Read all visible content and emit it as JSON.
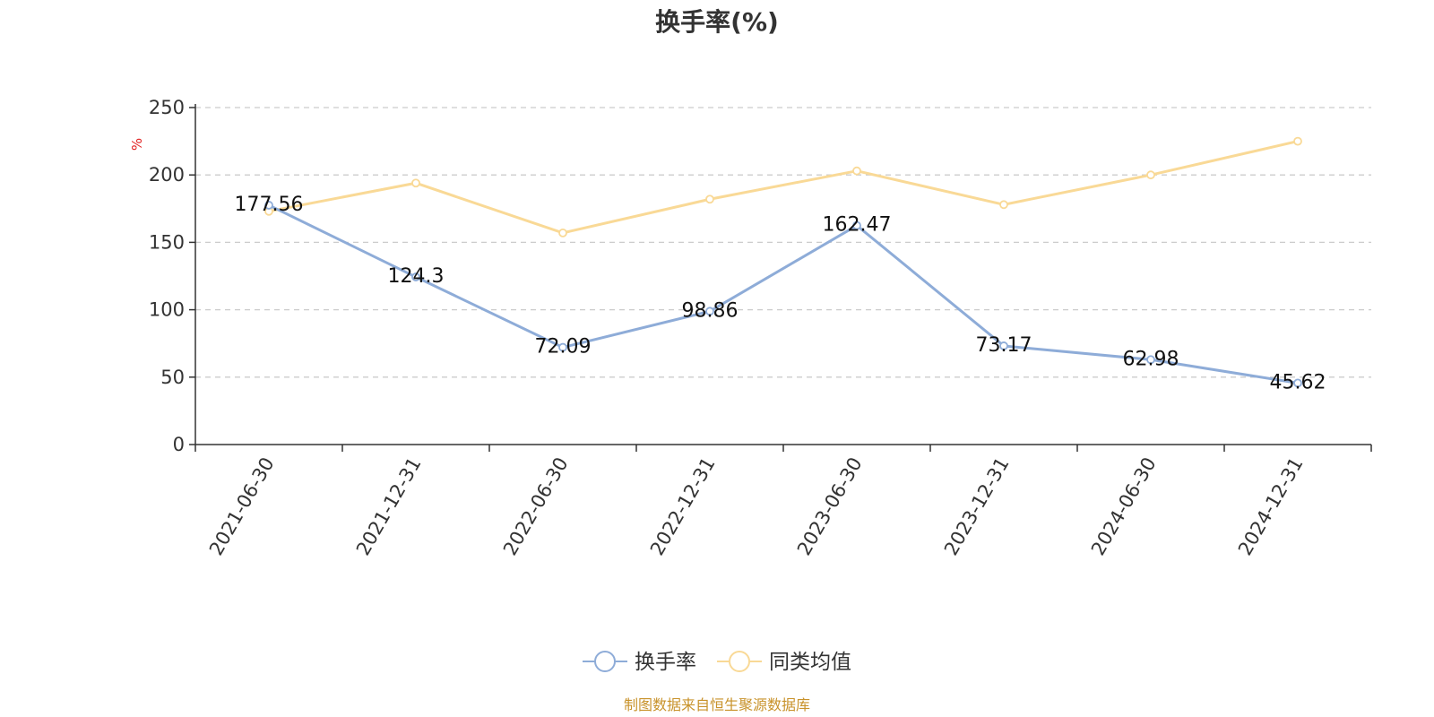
{
  "chart_data": {
    "type": "line",
    "title": "换手率(%)",
    "ylabel": "%",
    "xlabel": "",
    "ylim": [
      0,
      250
    ],
    "yticks": [
      0,
      50,
      100,
      150,
      200,
      250
    ],
    "grid": true,
    "categories": [
      "2021-06-30",
      "2021-12-31",
      "2022-06-30",
      "2022-12-31",
      "2023-06-30",
      "2023-12-31",
      "2024-06-30",
      "2024-12-31"
    ],
    "series": [
      {
        "name": "换手率",
        "color": "#8eacd8",
        "values": [
          177.56,
          124.3,
          72.09,
          98.86,
          162.47,
          73.17,
          62.98,
          45.62
        ],
        "data_labels": [
          "177.56",
          "124.3",
          "72.09",
          "98.86",
          "162.47",
          "73.17",
          "62.98",
          "45.62"
        ]
      },
      {
        "name": "同类均值",
        "color": "#f9d996",
        "values": [
          173,
          194,
          157,
          182,
          203,
          178,
          200,
          225
        ]
      }
    ],
    "legend_position": "bottom-center",
    "source": "制图数据来自恒生聚源数据库"
  }
}
